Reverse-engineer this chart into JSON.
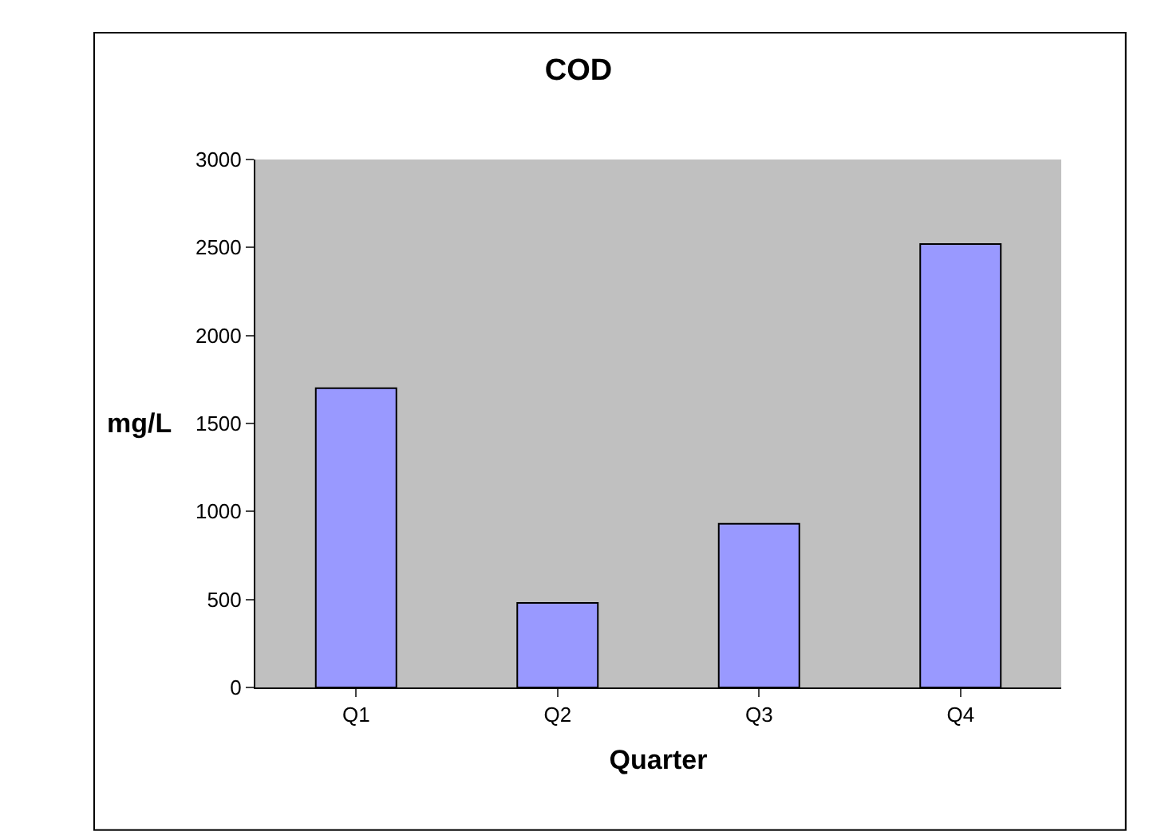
{
  "chart_data": {
    "type": "bar",
    "title": "COD",
    "xlabel": "Quarter",
    "ylabel": "mg/L",
    "categories": [
      "Q1",
      "Q2",
      "Q3",
      "Q4"
    ],
    "values": [
      1700,
      480,
      930,
      2520
    ],
    "color": "#9999ff",
    "ylim": [
      0,
      3000
    ],
    "yticks": [
      0,
      500,
      1000,
      1500,
      2000,
      2500,
      3000
    ],
    "grid": false,
    "legend": false
  }
}
